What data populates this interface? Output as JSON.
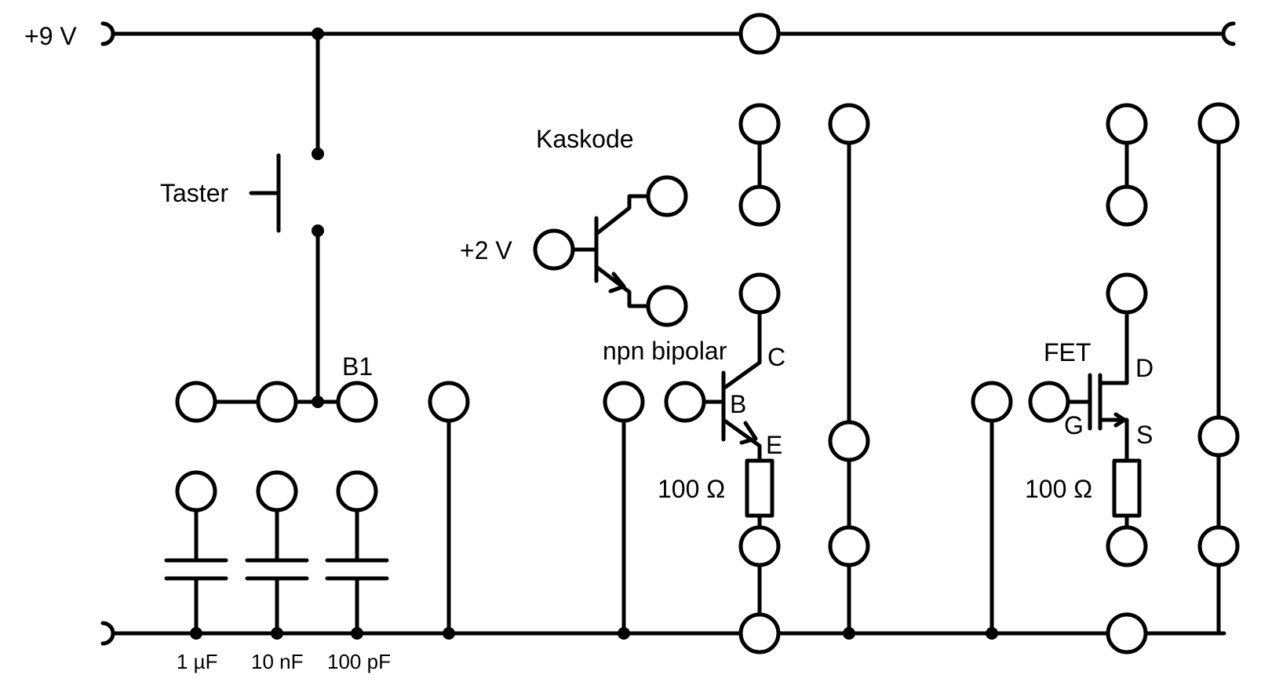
{
  "labels": {
    "supply_plus": "+9 V",
    "taster": "Taster",
    "kaskode": "Kaskode",
    "bias": "+2 V",
    "b1": "B1",
    "npn": "npn bipolar",
    "pin_c": "C",
    "pin_b": "B",
    "pin_e": "E",
    "res_npn": "100 Ω",
    "fet": "FET",
    "pin_d": "D",
    "pin_g": "G",
    "pin_s": "S",
    "res_fet": "100 Ω",
    "cap1": "1 µF",
    "cap2": "10 nF",
    "cap3": "100 pF"
  }
}
